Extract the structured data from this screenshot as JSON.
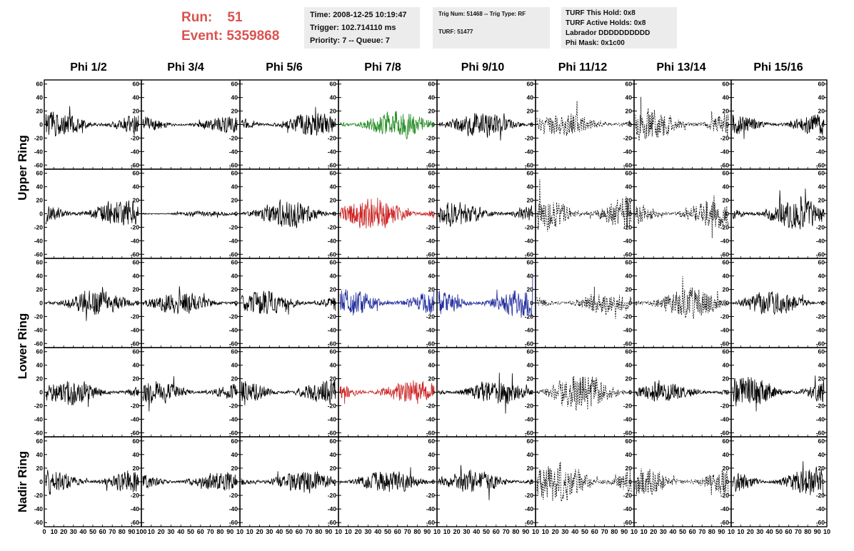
{
  "header": {
    "run_label": "Run:    51",
    "event_label": "Event: 5359868",
    "info1": [
      "Time: 2008-12-25 10:19:47",
      "Trigger: 102.714110 ms",
      "Priority: 7 -- Queue: 7"
    ],
    "info2": [
      "Trig Num: 51468 -- Trig Type: RF",
      "TURF: 51477"
    ],
    "info3": [
      "TURF This Hold: 0x8",
      "TURF Active Holds: 0x8",
      "Labrador DDDDDDDDDD",
      "Phi Mask: 0x1c00"
    ]
  },
  "columns": [
    "Phi 1/2",
    "Phi 3/4",
    "Phi 5/6",
    "Phi 7/8",
    "Phi 9/10",
    "Phi 11/12",
    "Phi 13/14",
    "Phi 15/16"
  ],
  "rows": [
    {
      "label": "Upper Ring",
      "span": [
        0,
        1
      ]
    },
    {
      "label": "Lower Ring",
      "span": [
        2,
        3
      ]
    },
    {
      "label": "Nadir Ring",
      "span": [
        4,
        4
      ]
    }
  ],
  "chart_data": {
    "type": "line",
    "title": "",
    "xlabel": "",
    "ylabel": "",
    "xlim": [
      0,
      100
    ],
    "ylim": [
      -65,
      65
    ],
    "y_ticks": [
      -60,
      -40,
      -20,
      0,
      20,
      40,
      60
    ],
    "x_ticks": [
      0,
      10,
      20,
      30,
      40,
      50,
      60,
      70,
      80,
      90,
      100
    ],
    "x_tick_labels_row5": [
      "0",
      "10",
      "20",
      "30",
      "40",
      "50",
      "60",
      "70",
      "80",
      "90",
      "10",
      "10",
      "20",
      "30",
      "40",
      "50",
      "60",
      "70",
      "80",
      "90",
      "10"
    ],
    "panel_rows": 5,
    "panel_cols": 8,
    "colors": {
      "default": "#000000",
      "green": "#1f8a1f",
      "red": "#cc2222",
      "blue": "#1e2a9c",
      "dashed": "#000000"
    },
    "panels": [
      [
        {
          "style": "solid",
          "color": "default",
          "amp": 18,
          "seed": 1
        },
        {
          "style": "solid",
          "color": "default",
          "amp": 12,
          "seed": 2
        },
        {
          "style": "solid",
          "color": "default",
          "amp": 16,
          "seed": 3
        },
        {
          "style": "solid",
          "color": "green",
          "amp": 20,
          "seed": 4
        },
        {
          "style": "solid",
          "color": "default",
          "amp": 18,
          "seed": 5
        },
        {
          "style": "dashed",
          "color": "dashed",
          "amp": 16,
          "seed": 6
        },
        {
          "style": "dashed",
          "color": "dashed",
          "amp": 22,
          "seed": 7
        },
        {
          "style": "solid",
          "color": "default",
          "amp": 16,
          "seed": 8
        }
      ],
      [
        {
          "style": "solid",
          "color": "default",
          "amp": 20,
          "seed": 9
        },
        {
          "style": "solid",
          "color": "default",
          "amp": 4,
          "seed": 10
        },
        {
          "style": "solid",
          "color": "default",
          "amp": 20,
          "seed": 11
        },
        {
          "style": "solid",
          "color": "red",
          "amp": 24,
          "seed": 12
        },
        {
          "style": "solid",
          "color": "default",
          "amp": 18,
          "seed": 13
        },
        {
          "style": "dashed",
          "color": "dashed",
          "amp": 26,
          "seed": 14
        },
        {
          "style": "dashed",
          "color": "dashed",
          "amp": 20,
          "seed": 15
        },
        {
          "style": "solid",
          "color": "default",
          "amp": 22,
          "seed": 16
        }
      ],
      [
        {
          "style": "solid",
          "color": "default",
          "amp": 18,
          "seed": 17
        },
        {
          "style": "solid",
          "color": "default",
          "amp": 16,
          "seed": 18
        },
        {
          "style": "solid",
          "color": "default",
          "amp": 18,
          "seed": 19
        },
        {
          "style": "solid",
          "color": "blue",
          "amp": 20,
          "seed": 20
        },
        {
          "style": "solid",
          "color": "blue",
          "amp": 22,
          "seed": 21
        },
        {
          "style": "dashed",
          "color": "dashed",
          "amp": 16,
          "seed": 22
        },
        {
          "style": "dashed",
          "color": "dashed",
          "amp": 22,
          "seed": 23
        },
        {
          "style": "solid",
          "color": "default",
          "amp": 18,
          "seed": 24
        }
      ],
      [
        {
          "style": "solid",
          "color": "default",
          "amp": 18,
          "seed": 25
        },
        {
          "style": "solid",
          "color": "default",
          "amp": 16,
          "seed": 26
        },
        {
          "style": "solid",
          "color": "default",
          "amp": 18,
          "seed": 27
        },
        {
          "style": "solid",
          "color": "red",
          "amp": 18,
          "seed": 28
        },
        {
          "style": "solid",
          "color": "default",
          "amp": 18,
          "seed": 29
        },
        {
          "style": "dashed",
          "color": "dashed",
          "amp": 26,
          "seed": 30
        },
        {
          "style": "solid",
          "color": "default",
          "amp": 14,
          "seed": 31
        },
        {
          "style": "solid",
          "color": "default",
          "amp": 22,
          "seed": 32
        }
      ],
      [
        {
          "style": "solid",
          "color": "default",
          "amp": 18,
          "seed": 33
        },
        {
          "style": "solid",
          "color": "default",
          "amp": 14,
          "seed": 34
        },
        {
          "style": "solid",
          "color": "default",
          "amp": 16,
          "seed": 35
        },
        {
          "style": "solid",
          "color": "default",
          "amp": 16,
          "seed": 36
        },
        {
          "style": "solid",
          "color": "default",
          "amp": 16,
          "seed": 37
        },
        {
          "style": "dashed",
          "color": "dashed",
          "amp": 28,
          "seed": 38
        },
        {
          "style": "dashed",
          "color": "dashed",
          "amp": 20,
          "seed": 39
        },
        {
          "style": "solid",
          "color": "default",
          "amp": 20,
          "seed": 40
        }
      ]
    ]
  }
}
